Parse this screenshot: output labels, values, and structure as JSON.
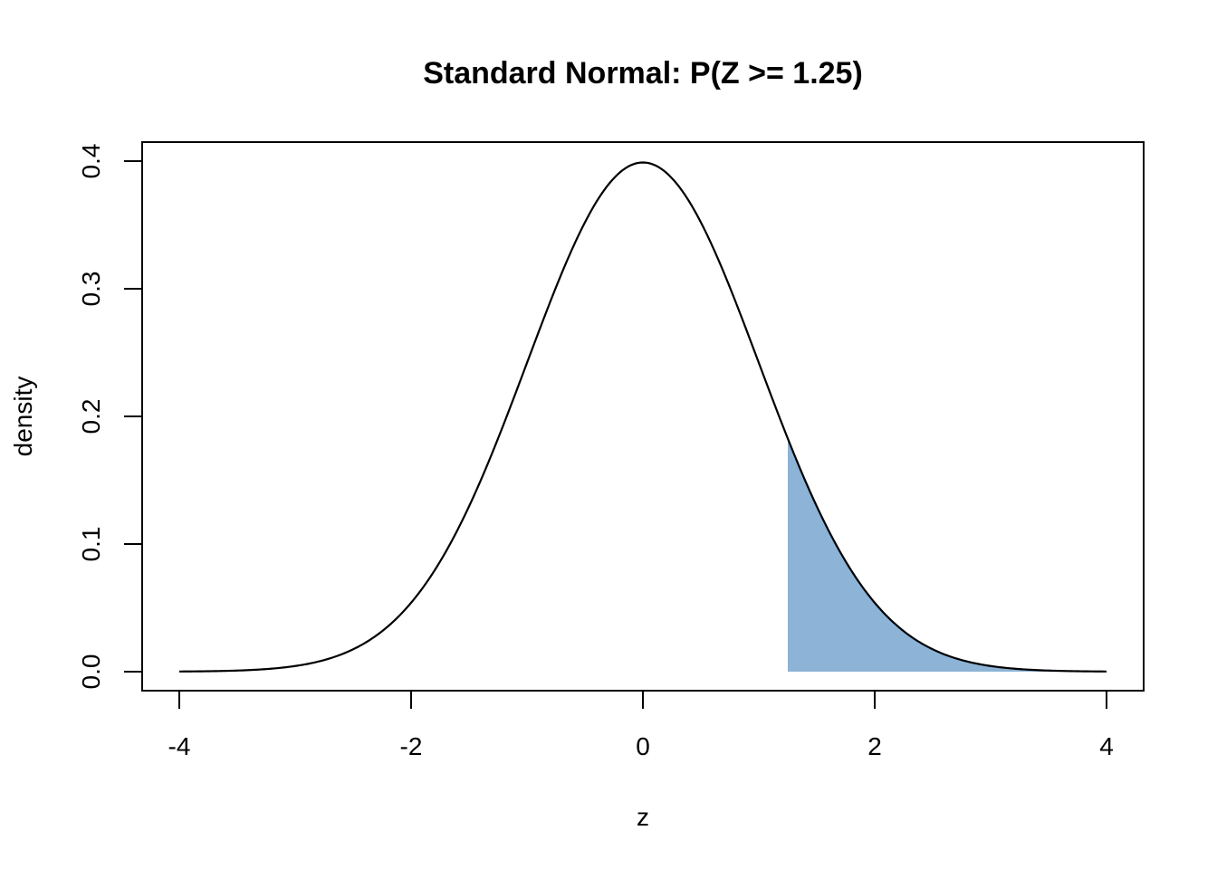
{
  "chart_data": {
    "type": "area",
    "title": "Standard Normal: P(Z >= 1.25)",
    "xlabel": "z",
    "ylabel": "density",
    "xlim": [
      -4,
      4
    ],
    "ylim": [
      0,
      0.4
    ],
    "x_ticks": [
      "-4",
      "-2",
      "0",
      "2",
      "4"
    ],
    "y_ticks": [
      "0.0",
      "0.1",
      "0.2",
      "0.3",
      "0.4"
    ],
    "shade_from": 1.25,
    "shade_to": 4,
    "shade_color": "#8db3d6",
    "curve_color": "#000000",
    "grid": false,
    "series": [
      {
        "x": [
          -4,
          -3.5,
          -3,
          -2.5,
          -2,
          -1.75,
          -1.5,
          -1.25,
          -1,
          -0.75,
          -0.5,
          -0.25,
          0,
          0.25,
          0.5,
          0.75,
          1,
          1.25,
          1.5,
          1.75,
          2,
          2.5,
          3,
          3.5,
          4
        ],
        "y": [
          0.0001,
          0.0009,
          0.0044,
          0.0175,
          0.054,
          0.0863,
          0.1295,
          0.1826,
          0.242,
          0.3011,
          0.3521,
          0.3867,
          0.3989,
          0.3867,
          0.3521,
          0.3011,
          0.242,
          0.1826,
          0.1295,
          0.0863,
          0.054,
          0.0175,
          0.0044,
          0.0009,
          0.0001
        ]
      }
    ]
  }
}
